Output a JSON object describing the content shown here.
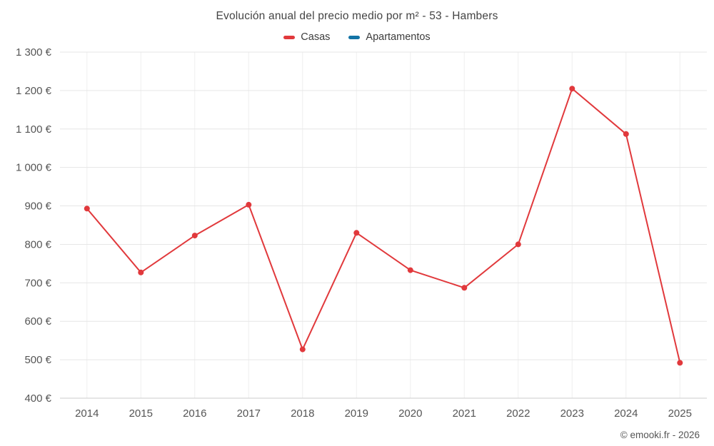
{
  "title": "Evolución anual del precio medio por m² - 53 - Hambers",
  "legend": [
    {
      "label": "Casas",
      "color": "#e1393c"
    },
    {
      "label": "Apartamentos",
      "color": "#1374a6"
    }
  ],
  "copyright": "© emooki.fr - 2026",
  "chart_data": {
    "type": "line",
    "title": "Evolución anual del precio medio por m² - 53 - Hambers",
    "categories": [
      "2014",
      "2015",
      "2016",
      "2017",
      "2018",
      "2019",
      "2020",
      "2021",
      "2022",
      "2023",
      "2024",
      "2025"
    ],
    "series": [
      {
        "name": "Casas",
        "color": "#e1393c",
        "values": [
          893,
          727,
          823,
          903,
          527,
          830,
          733,
          687,
          800,
          1205,
          1087,
          492
        ]
      },
      {
        "name": "Apartamentos",
        "color": "#1374a6",
        "values": []
      }
    ],
    "xlabel": "",
    "ylabel": "",
    "ytick_suffix": " €",
    "ylim": [
      400,
      1300
    ],
    "ytick_step": 100,
    "grid": true,
    "legend_position": "top"
  }
}
